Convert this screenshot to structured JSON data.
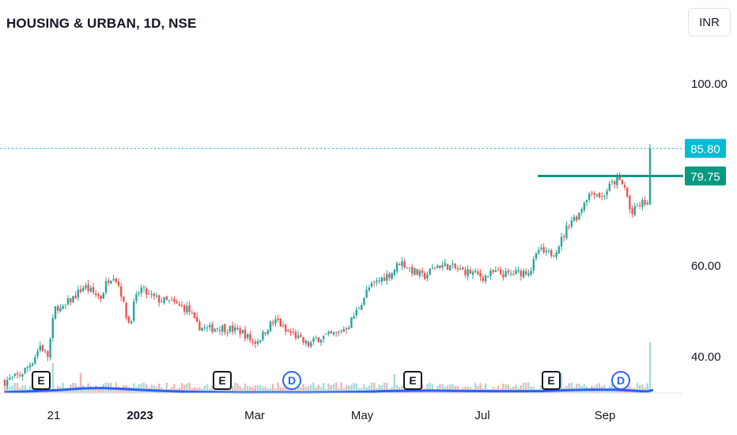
{
  "header": {
    "title": "HOUSING & URBAN, 1D, NSE",
    "currency": "INR"
  },
  "colors": {
    "up": "#26a69a",
    "down": "#ef5350",
    "ma": "#2962ff",
    "price_line": "#00bcd4",
    "level": "#089981",
    "vol_up": "#a6dbd7",
    "vol_down": "#f3b5b3"
  },
  "chart_data": {
    "type": "candlestick",
    "ylim": [
      32,
      108
    ],
    "y_ticks": [
      "100.00",
      "60.00",
      "40.00"
    ],
    "x_ticks": [
      "21",
      "2023",
      "Mar",
      "May",
      "Jul",
      "Sep"
    ],
    "last_price": "85.80",
    "level_price": "79.75",
    "close_series": [
      [
        0,
        34.6
      ],
      [
        20,
        36.0
      ],
      [
        35,
        39.0
      ],
      [
        45,
        42.5
      ],
      [
        55,
        40.0
      ],
      [
        60,
        47.0
      ],
      [
        65,
        51.5
      ],
      [
        72,
        50.0
      ],
      [
        80,
        52.0
      ],
      [
        90,
        53.5
      ],
      [
        100,
        55.5
      ],
      [
        112,
        54.0
      ],
      [
        122,
        53.0
      ],
      [
        130,
        57.0
      ],
      [
        138,
        58.0
      ],
      [
        146,
        55.0
      ],
      [
        152,
        50.0
      ],
      [
        158,
        47.0
      ],
      [
        164,
        52.0
      ],
      [
        172,
        55.0
      ],
      [
        182,
        53.5
      ],
      [
        195,
        52.5
      ],
      [
        210,
        52.0
      ],
      [
        222,
        51.0
      ],
      [
        232,
        50.5
      ],
      [
        242,
        47.0
      ],
      [
        255,
        46.0
      ],
      [
        270,
        46.5
      ],
      [
        285,
        46.0
      ],
      [
        300,
        45.5
      ],
      [
        315,
        43.0
      ],
      [
        325,
        44.5
      ],
      [
        335,
        47.0
      ],
      [
        345,
        48.0
      ],
      [
        355,
        45.5
      ],
      [
        365,
        45.0
      ],
      [
        375,
        43.5
      ],
      [
        385,
        42.5
      ],
      [
        395,
        44.0
      ],
      [
        405,
        44.5
      ],
      [
        420,
        45.0
      ],
      [
        435,
        47.0
      ],
      [
        445,
        50.0
      ],
      [
        460,
        55.0
      ],
      [
        475,
        57.0
      ],
      [
        490,
        58.5
      ],
      [
        500,
        61.0
      ],
      [
        515,
        59.0
      ],
      [
        530,
        57.5
      ],
      [
        545,
        60.0
      ],
      [
        560,
        60.0
      ],
      [
        575,
        59.0
      ],
      [
        590,
        58.5
      ],
      [
        605,
        57.5
      ],
      [
        620,
        58.5
      ],
      [
        635,
        58.0
      ],
      [
        650,
        58.5
      ],
      [
        665,
        59.0
      ],
      [
        675,
        63.5
      ],
      [
        685,
        62.5
      ],
      [
        695,
        63.0
      ],
      [
        705,
        66.0
      ],
      [
        715,
        70.0
      ],
      [
        725,
        71.0
      ],
      [
        735,
        75.0
      ],
      [
        745,
        76.5
      ],
      [
        755,
        75.0
      ],
      [
        765,
        77.5
      ],
      [
        775,
        79.0
      ],
      [
        785,
        77.0
      ],
      [
        792,
        71.0
      ],
      [
        800,
        73.0
      ],
      [
        808,
        74.0
      ],
      [
        814,
        73.5
      ],
      [
        819,
        85.8
      ]
    ],
    "volume_series": [
      [
        60,
        0.95
      ],
      [
        95,
        0.65
      ],
      [
        135,
        0.33
      ],
      [
        494,
        0.6
      ],
      [
        705,
        0.63
      ],
      [
        819,
        1.6
      ]
    ],
    "ma_series": [
      [
        0,
        0.028
      ],
      [
        40,
        0.062
      ],
      [
        70,
        0.098
      ],
      [
        100,
        0.15
      ],
      [
        125,
        0.16
      ],
      [
        150,
        0.13
      ],
      [
        175,
        0.098
      ],
      [
        200,
        0.07
      ],
      [
        230,
        0.045
      ],
      [
        260,
        0.03
      ],
      [
        300,
        0.02
      ],
      [
        340,
        0.022
      ],
      [
        380,
        0.02
      ],
      [
        420,
        0.028
      ],
      [
        450,
        0.038
      ],
      [
        480,
        0.062
      ],
      [
        510,
        0.072
      ],
      [
        540,
        0.078
      ],
      [
        570,
        0.068
      ],
      [
        600,
        0.062
      ],
      [
        640,
        0.058
      ],
      [
        680,
        0.064
      ],
      [
        700,
        0.08
      ],
      [
        720,
        0.097
      ],
      [
        740,
        0.108
      ],
      [
        770,
        0.105
      ],
      [
        790,
        0.08
      ],
      [
        805,
        0.06
      ],
      [
        812,
        0.055
      ],
      [
        820,
        0.095
      ]
    ],
    "events": [
      {
        "label": "E",
        "kind": "earnings",
        "x": 52
      },
      {
        "label": "E",
        "kind": "earnings",
        "x": 281
      },
      {
        "label": "D",
        "kind": "dividend",
        "x": 369
      },
      {
        "label": "E",
        "kind": "earnings",
        "x": 522
      },
      {
        "label": "E",
        "kind": "earnings",
        "x": 697
      },
      {
        "label": "D",
        "kind": "dividend",
        "x": 785
      }
    ]
  }
}
